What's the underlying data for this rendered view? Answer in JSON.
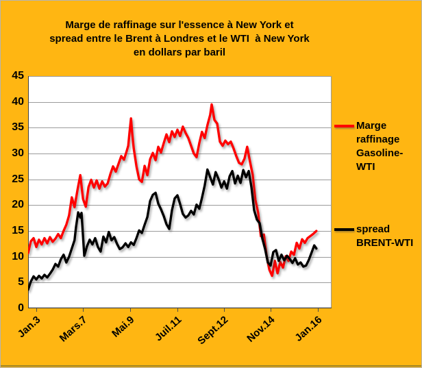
{
  "title": {
    "line1": "Marge de raffinage sur l'essence à New York et",
    "line2": "spread entre le Brent à Londres et le WTI  à New York",
    "line3": "en dollars par baril"
  },
  "colors": {
    "background": "#FFB612",
    "plot_background": "#FFFFFF",
    "gridline": "#9A9A9A",
    "axis": "#404040",
    "red_series": "#FF0000",
    "black_series": "#000000",
    "text": "#000000"
  },
  "legend": [
    {
      "id": "marge",
      "lines": [
        "Marge",
        "raffinage",
        "Gasoline-",
        "WTI"
      ],
      "color": "#FF0000"
    },
    {
      "id": "spread",
      "lines": [
        "spread",
        "BRENT-WTI"
      ],
      "color": "#000000"
    }
  ],
  "chart_data": {
    "type": "line",
    "title": "Marge de raffinage sur l'essence à New York et spread entre le Brent à Londres et le WTI à New York en dollars par baril",
    "xlabel": "",
    "ylabel": "dollars par baril",
    "ylim": [
      0,
      45
    ],
    "y_tick_step": 5,
    "y_ticks": [
      45,
      40,
      35,
      30,
      25,
      20,
      15,
      10,
      5,
      0
    ],
    "grid": "horizontal",
    "legend_position": "right",
    "x_ticks": [
      {
        "label": "Jan.3",
        "pos": 0.027
      },
      {
        "label": "Mars.7",
        "pos": 0.181
      },
      {
        "label": "Mai.9",
        "pos": 0.336
      },
      {
        "label": "Juil.11",
        "pos": 0.492
      },
      {
        "label": "Sept.12",
        "pos": 0.646
      },
      {
        "label": "Nov.14",
        "pos": 0.799
      },
      {
        "label": "Jan.16",
        "pos": 0.955
      }
    ],
    "series": [
      {
        "name": "Marge raffinage Gasoline-WTI",
        "color": "#FF0000",
        "points": [
          [
            0.0,
            10.7
          ],
          [
            0.009,
            13.0
          ],
          [
            0.018,
            13.6
          ],
          [
            0.027,
            11.9
          ],
          [
            0.036,
            13.3
          ],
          [
            0.045,
            12.4
          ],
          [
            0.054,
            13.6
          ],
          [
            0.063,
            12.6
          ],
          [
            0.072,
            13.8
          ],
          [
            0.081,
            12.9
          ],
          [
            0.09,
            13.5
          ],
          [
            0.099,
            14.4
          ],
          [
            0.108,
            13.6
          ],
          [
            0.117,
            15.0
          ],
          [
            0.126,
            16.2
          ],
          [
            0.135,
            18.0
          ],
          [
            0.144,
            21.5
          ],
          [
            0.153,
            19.6
          ],
          [
            0.163,
            23.0
          ],
          [
            0.172,
            25.8
          ],
          [
            0.181,
            21.2
          ],
          [
            0.19,
            19.7
          ],
          [
            0.199,
            23.5
          ],
          [
            0.208,
            24.9
          ],
          [
            0.217,
            23.4
          ],
          [
            0.226,
            24.8
          ],
          [
            0.235,
            23.2
          ],
          [
            0.244,
            24.6
          ],
          [
            0.253,
            23.6
          ],
          [
            0.262,
            24.2
          ],
          [
            0.271,
            26.0
          ],
          [
            0.28,
            27.5
          ],
          [
            0.289,
            26.5
          ],
          [
            0.298,
            28.0
          ],
          [
            0.307,
            29.5
          ],
          [
            0.316,
            28.8
          ],
          [
            0.325,
            30.5
          ],
          [
            0.33,
            31.5
          ],
          [
            0.334,
            34.0
          ],
          [
            0.339,
            36.8
          ],
          [
            0.343,
            34.0
          ],
          [
            0.348,
            31.0
          ],
          [
            0.357,
            27.5
          ],
          [
            0.366,
            25.0
          ],
          [
            0.375,
            24.5
          ],
          [
            0.384,
            27.6
          ],
          [
            0.393,
            25.8
          ],
          [
            0.402,
            28.9
          ],
          [
            0.411,
            30.1
          ],
          [
            0.42,
            28.7
          ],
          [
            0.429,
            31.3
          ],
          [
            0.438,
            30.2
          ],
          [
            0.447,
            32.0
          ],
          [
            0.456,
            33.7
          ],
          [
            0.465,
            32.2
          ],
          [
            0.474,
            34.3
          ],
          [
            0.483,
            33.2
          ],
          [
            0.492,
            34.6
          ],
          [
            0.501,
            33.4
          ],
          [
            0.51,
            35.2
          ],
          [
            0.519,
            34.0
          ],
          [
            0.528,
            33.0
          ],
          [
            0.537,
            31.5
          ],
          [
            0.546,
            30.0
          ],
          [
            0.555,
            29.3
          ],
          [
            0.564,
            32.0
          ],
          [
            0.573,
            34.2
          ],
          [
            0.582,
            33.0
          ],
          [
            0.591,
            35.5
          ],
          [
            0.6,
            37.5
          ],
          [
            0.605,
            39.5
          ],
          [
            0.614,
            36.5
          ],
          [
            0.623,
            35.8
          ],
          [
            0.632,
            32.3
          ],
          [
            0.641,
            31.5
          ],
          [
            0.65,
            32.5
          ],
          [
            0.659,
            31.8
          ],
          [
            0.668,
            32.3
          ],
          [
            0.677,
            31.0
          ],
          [
            0.686,
            29.5
          ],
          [
            0.695,
            28.2
          ],
          [
            0.704,
            27.9
          ],
          [
            0.713,
            29.0
          ],
          [
            0.722,
            31.3
          ],
          [
            0.731,
            28.5
          ],
          [
            0.74,
            25.9
          ],
          [
            0.749,
            21.0
          ],
          [
            0.758,
            18.5
          ],
          [
            0.767,
            14.0
          ],
          [
            0.777,
            14.3
          ],
          [
            0.786,
            10.1
          ],
          [
            0.795,
            7.5
          ],
          [
            0.804,
            6.3
          ],
          [
            0.813,
            9.2
          ],
          [
            0.822,
            6.8
          ],
          [
            0.831,
            9.0
          ],
          [
            0.84,
            7.9
          ],
          [
            0.849,
            10.1
          ],
          [
            0.858,
            9.2
          ],
          [
            0.867,
            11.0
          ],
          [
            0.876,
            10.4
          ],
          [
            0.885,
            12.7
          ],
          [
            0.894,
            11.6
          ],
          [
            0.903,
            13.4
          ],
          [
            0.912,
            12.7
          ],
          [
            0.921,
            13.6
          ],
          [
            0.93,
            14.0
          ],
          [
            0.939,
            14.4
          ],
          [
            0.95,
            15.0
          ]
        ]
      },
      {
        "name": "spread BRENT-WTI",
        "color": "#000000",
        "points": [
          [
            0.0,
            3.6
          ],
          [
            0.009,
            5.2
          ],
          [
            0.018,
            6.2
          ],
          [
            0.027,
            5.6
          ],
          [
            0.036,
            6.3
          ],
          [
            0.045,
            5.8
          ],
          [
            0.054,
            6.5
          ],
          [
            0.063,
            6.0
          ],
          [
            0.072,
            6.7
          ],
          [
            0.081,
            7.5
          ],
          [
            0.09,
            8.6
          ],
          [
            0.099,
            8.1
          ],
          [
            0.108,
            9.5
          ],
          [
            0.117,
            10.4
          ],
          [
            0.126,
            8.9
          ],
          [
            0.135,
            10.0
          ],
          [
            0.144,
            11.6
          ],
          [
            0.153,
            13.2
          ],
          [
            0.158,
            15.8
          ],
          [
            0.165,
            18.6
          ],
          [
            0.172,
            17.6
          ],
          [
            0.176,
            18.5
          ],
          [
            0.185,
            10.2
          ],
          [
            0.194,
            12.0
          ],
          [
            0.203,
            13.3
          ],
          [
            0.212,
            12.4
          ],
          [
            0.221,
            13.6
          ],
          [
            0.23,
            11.9
          ],
          [
            0.239,
            11.0
          ],
          [
            0.248,
            13.9
          ],
          [
            0.257,
            12.8
          ],
          [
            0.266,
            14.8
          ],
          [
            0.275,
            13.2
          ],
          [
            0.284,
            13.8
          ],
          [
            0.293,
            12.5
          ],
          [
            0.302,
            11.5
          ],
          [
            0.311,
            11.8
          ],
          [
            0.321,
            12.6
          ],
          [
            0.33,
            11.9
          ],
          [
            0.339,
            12.8
          ],
          [
            0.348,
            12.3
          ],
          [
            0.357,
            13.6
          ],
          [
            0.366,
            15.1
          ],
          [
            0.375,
            14.6
          ],
          [
            0.384,
            16.2
          ],
          [
            0.393,
            17.7
          ],
          [
            0.402,
            20.8
          ],
          [
            0.411,
            22.0
          ],
          [
            0.42,
            22.4
          ],
          [
            0.429,
            20.3
          ],
          [
            0.438,
            19.2
          ],
          [
            0.447,
            17.9
          ],
          [
            0.456,
            16.3
          ],
          [
            0.465,
            15.4
          ],
          [
            0.474,
            19.0
          ],
          [
            0.483,
            21.3
          ],
          [
            0.492,
            21.9
          ],
          [
            0.501,
            20.2
          ],
          [
            0.51,
            18.3
          ],
          [
            0.519,
            17.6
          ],
          [
            0.528,
            18.0
          ],
          [
            0.537,
            18.9
          ],
          [
            0.546,
            18.2
          ],
          [
            0.555,
            20.1
          ],
          [
            0.564,
            19.3
          ],
          [
            0.573,
            21.4
          ],
          [
            0.582,
            23.8
          ],
          [
            0.591,
            26.9
          ],
          [
            0.6,
            25.4
          ],
          [
            0.609,
            24.0
          ],
          [
            0.618,
            26.4
          ],
          [
            0.628,
            25.0
          ],
          [
            0.637,
            23.4
          ],
          [
            0.646,
            24.6
          ],
          [
            0.655,
            23.2
          ],
          [
            0.664,
            25.6
          ],
          [
            0.673,
            26.6
          ],
          [
            0.682,
            24.2
          ],
          [
            0.691,
            25.7
          ],
          [
            0.7,
            24.3
          ],
          [
            0.709,
            26.8
          ],
          [
            0.718,
            25.4
          ],
          [
            0.727,
            26.6
          ],
          [
            0.736,
            23.5
          ],
          [
            0.745,
            19.0
          ],
          [
            0.754,
            17.2
          ],
          [
            0.763,
            16.5
          ],
          [
            0.772,
            13.5
          ],
          [
            0.781,
            11.5
          ],
          [
            0.79,
            8.9
          ],
          [
            0.799,
            8.3
          ],
          [
            0.808,
            10.9
          ],
          [
            0.817,
            11.3
          ],
          [
            0.826,
            9.2
          ],
          [
            0.835,
            10.4
          ],
          [
            0.844,
            9.3
          ],
          [
            0.853,
            10.2
          ],
          [
            0.862,
            9.6
          ],
          [
            0.871,
            8.8
          ],
          [
            0.88,
            9.7
          ],
          [
            0.889,
            8.5
          ],
          [
            0.898,
            8.9
          ],
          [
            0.907,
            8.1
          ],
          [
            0.916,
            8.3
          ],
          [
            0.925,
            9.4
          ],
          [
            0.934,
            10.8
          ],
          [
            0.943,
            12.2
          ],
          [
            0.95,
            11.6
          ]
        ]
      }
    ]
  }
}
